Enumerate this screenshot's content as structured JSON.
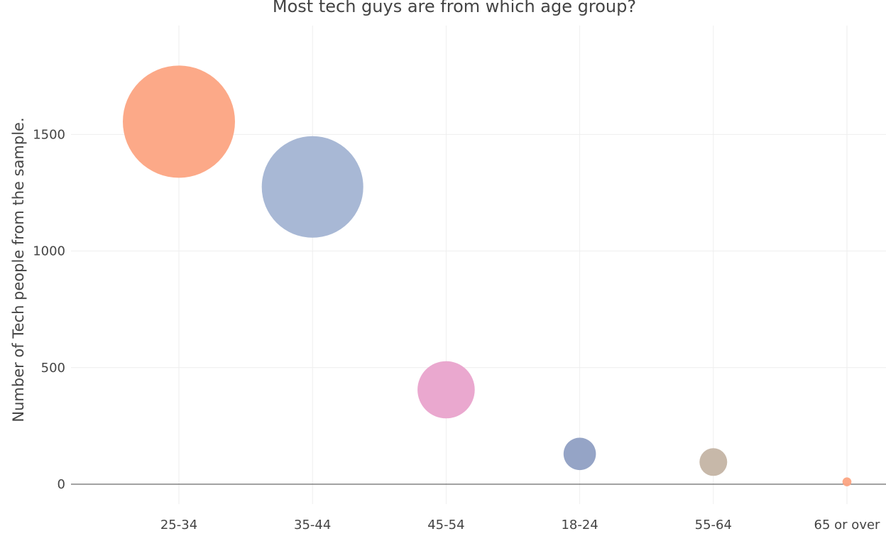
{
  "chart_data": {
    "type": "scatter",
    "title": "Most tech guys are from which age group?",
    "xlabel": "",
    "ylabel": "Number of Tech people from the sample.",
    "categories": [
      "25-34",
      "35-44",
      "45-54",
      "18-24",
      "55-64",
      "65 or over"
    ],
    "values": [
      1555,
      1275,
      405,
      130,
      95,
      10
    ],
    "ylim": [
      -80,
      1880
    ],
    "yticks": [
      0,
      500,
      1000,
      1500
    ],
    "grid": true,
    "marker_colors": [
      "#fca482",
      "#a3b4d3",
      "#e9a3cc",
      "#8f9fc3",
      "#c4b4a4",
      "#fca482"
    ],
    "marker_size_encodes": "values"
  }
}
